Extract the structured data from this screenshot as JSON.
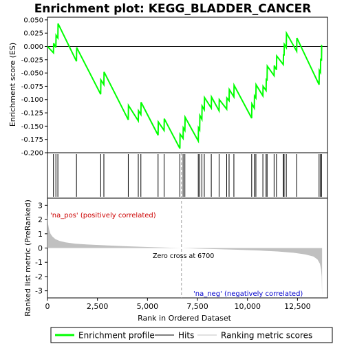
{
  "chart_data": {
    "type": "line",
    "title": "Enrichment plot: KEGG_BLADDER_CANCER",
    "xlabel": "Rank in Ordered Dataset",
    "xlim": [
      0,
      14000
    ],
    "x_ticks": [
      0,
      2500,
      5000,
      7500,
      10000,
      12500
    ],
    "x_tick_labels": [
      "0",
      "2,500",
      "5,000",
      "7,500",
      "10,000",
      "12,500"
    ],
    "panels": {
      "enrichment": {
        "ylabel": "Enrichment score (ES)",
        "ylim": [
          -0.2,
          0.055
        ],
        "y_ticks": [
          0.05,
          0.025,
          0.0,
          -0.025,
          -0.05,
          -0.075,
          -0.1,
          -0.125,
          -0.15,
          -0.175,
          -0.2
        ],
        "y_tick_labels": [
          "0.050",
          "0.025",
          "0.000",
          "-0.025",
          "-0.050",
          "-0.075",
          "-0.100",
          "-0.125",
          "-0.150",
          "-0.175",
          "-0.200"
        ],
        "series": {
          "name": "Enrichment profile",
          "color": "#00ff00",
          "points": [
            [
              0,
              0.0
            ],
            [
              300,
              -0.012
            ],
            [
              310,
              0.006
            ],
            [
              420,
              -0.002
            ],
            [
              430,
              0.021
            ],
            [
              520,
              0.016
            ],
            [
              530,
              0.043
            ],
            [
              1450,
              -0.028
            ],
            [
              1460,
              -0.002
            ],
            [
              2660,
              -0.09
            ],
            [
              2670,
              -0.063
            ],
            [
              2820,
              -0.072
            ],
            [
              2830,
              -0.048
            ],
            [
              4040,
              -0.138
            ],
            [
              4050,
              -0.111
            ],
            [
              4540,
              -0.14
            ],
            [
              4550,
              -0.121
            ],
            [
              4670,
              -0.128
            ],
            [
              4680,
              -0.105
            ],
            [
              5530,
              -0.167
            ],
            [
              5540,
              -0.142
            ],
            [
              5830,
              -0.158
            ],
            [
              5840,
              -0.136
            ],
            [
              6620,
              -0.192
            ],
            [
              6630,
              -0.165
            ],
            [
              6780,
              -0.173
            ],
            [
              6790,
              -0.153
            ],
            [
              6870,
              -0.158
            ],
            [
              6880,
              -0.133
            ],
            [
              7540,
              -0.178
            ],
            [
              7550,
              -0.153
            ],
            [
              7610,
              -0.157
            ],
            [
              7620,
              -0.13
            ],
            [
              7720,
              -0.137
            ],
            [
              7730,
              -0.112
            ],
            [
              7840,
              -0.119
            ],
            [
              7850,
              -0.096
            ],
            [
              8190,
              -0.116
            ],
            [
              8200,
              -0.095
            ],
            [
              8580,
              -0.121
            ],
            [
              8590,
              -0.1
            ],
            [
              8960,
              -0.118
            ],
            [
              8970,
              -0.097
            ],
            [
              9080,
              -0.102
            ],
            [
              9090,
              -0.081
            ],
            [
              9320,
              -0.095
            ],
            [
              9330,
              -0.073
            ],
            [
              10210,
              -0.135
            ],
            [
              10220,
              -0.108
            ],
            [
              10340,
              -0.116
            ],
            [
              10350,
              -0.093
            ],
            [
              10420,
              -0.097
            ],
            [
              10430,
              -0.072
            ],
            [
              10770,
              -0.093
            ],
            [
              10780,
              -0.075
            ],
            [
              10930,
              -0.083
            ],
            [
              10940,
              -0.062
            ],
            [
              10980,
              -0.063
            ],
            [
              10990,
              -0.037
            ],
            [
              11330,
              -0.055
            ],
            [
              11340,
              -0.036
            ],
            [
              11450,
              -0.044
            ],
            [
              11460,
              -0.018
            ],
            [
              11790,
              -0.034
            ],
            [
              11800,
              -0.016
            ],
            [
              11830,
              -0.016
            ],
            [
              11840,
              0.004
            ],
            [
              11940,
              -0.002
            ],
            [
              11950,
              0.025
            ],
            [
              12460,
              -0.009
            ],
            [
              12470,
              0.016
            ],
            [
              13580,
              -0.072
            ],
            [
              13590,
              -0.045
            ],
            [
              13650,
              -0.049
            ],
            [
              13660,
              -0.023
            ],
            [
              13700,
              -0.027
            ],
            [
              13710,
              0.002
            ],
            [
              13730,
              0.002
            ]
          ]
        },
        "zero_line_color": "#000000"
      },
      "hits": {
        "line_color": "#000000",
        "positions": [
          300,
          420,
          520,
          1450,
          2660,
          2820,
          4040,
          4540,
          4670,
          5530,
          5830,
          6620,
          6780,
          6870,
          7540,
          7610,
          7720,
          7840,
          8190,
          8580,
          8960,
          9080,
          9320,
          10210,
          10340,
          10420,
          10770,
          10930,
          10980,
          11330,
          11450,
          11790,
          11830,
          11940,
          12460,
          13580,
          13650,
          13700
        ]
      },
      "color_bar": {
        "positive_color": "#ff0000",
        "negative_color": "#0000ff",
        "stops": [
          {
            "from": 0,
            "to": 250,
            "color": "#ff0000"
          },
          {
            "from": 250,
            "to": 2050,
            "color": "#ff4a4a"
          },
          {
            "from": 2050,
            "to": 3100,
            "color": "#ff7070"
          },
          {
            "from": 3100,
            "to": 4700,
            "color": "#ff9a9a"
          },
          {
            "from": 4700,
            "to": 5800,
            "color": "#ffbfe5"
          },
          {
            "from": 5800,
            "to": 6550,
            "color": "#ffd2ee"
          },
          {
            "from": 6550,
            "to": 7300,
            "color": "#ffe6f4"
          },
          {
            "from": 7300,
            "to": 8300,
            "color": "#eceaff"
          },
          {
            "from": 8300,
            "to": 9500,
            "color": "#d2d2ff"
          },
          {
            "from": 9500,
            "to": 10200,
            "color": "#b8b8ff"
          },
          {
            "from": 10200,
            "to": 11200,
            "color": "#9a9aff"
          },
          {
            "from": 11200,
            "to": 12400,
            "color": "#6a6aff"
          },
          {
            "from": 12400,
            "to": 13300,
            "color": "#4040ff"
          },
          {
            "from": 13300,
            "to": 13730,
            "color": "#0000ee"
          }
        ]
      },
      "ranked_metric": {
        "ylabel": "Ranked list metric (PreRanked)",
        "ylim": [
          -3.5,
          3.5
        ],
        "y_ticks": [
          3,
          2,
          1,
          0,
          -1,
          -2,
          -3
        ],
        "y_tick_labels": [
          "3",
          "2",
          "1",
          "0",
          "-1",
          "-2",
          "-3"
        ],
        "fill_color": "#c0c0c0",
        "points": [
          [
            0,
            2.4
          ],
          [
            30,
            1.7
          ],
          [
            80,
            1.3
          ],
          [
            150,
            1.0
          ],
          [
            250,
            0.8
          ],
          [
            400,
            0.62
          ],
          [
            600,
            0.5
          ],
          [
            900,
            0.4
          ],
          [
            1400,
            0.3
          ],
          [
            2000,
            0.25
          ],
          [
            3000,
            0.18
          ],
          [
            4000,
            0.12
          ],
          [
            5000,
            0.07
          ],
          [
            6000,
            0.03
          ],
          [
            6700,
            0.0
          ],
          [
            7500,
            -0.04
          ],
          [
            8500,
            -0.08
          ],
          [
            9500,
            -0.12
          ],
          [
            10500,
            -0.17
          ],
          [
            11500,
            -0.24
          ],
          [
            12300,
            -0.33
          ],
          [
            12900,
            -0.45
          ],
          [
            13300,
            -0.6
          ],
          [
            13500,
            -0.8
          ],
          [
            13620,
            -1.1
          ],
          [
            13680,
            -1.5
          ],
          [
            13710,
            -2.0
          ],
          [
            13730,
            -3.4
          ]
        ],
        "zero_cross_x": 6700,
        "zero_cross_label": "Zero cross at 6700",
        "pos_label": "'na_pos' (positively correlated)",
        "neg_label": "'na_neg' (negatively correlated)",
        "pos_label_color": "#cc0000",
        "neg_label_color": "#0000cc"
      }
    },
    "legend": {
      "placement": "bottom",
      "entries": [
        {
          "label": "Enrichment profile",
          "color": "#00ff00"
        },
        {
          "label": "Hits",
          "color": "#000000"
        },
        {
          "label": "Ranking metric scores",
          "color": "#c0c0c0"
        }
      ]
    }
  }
}
